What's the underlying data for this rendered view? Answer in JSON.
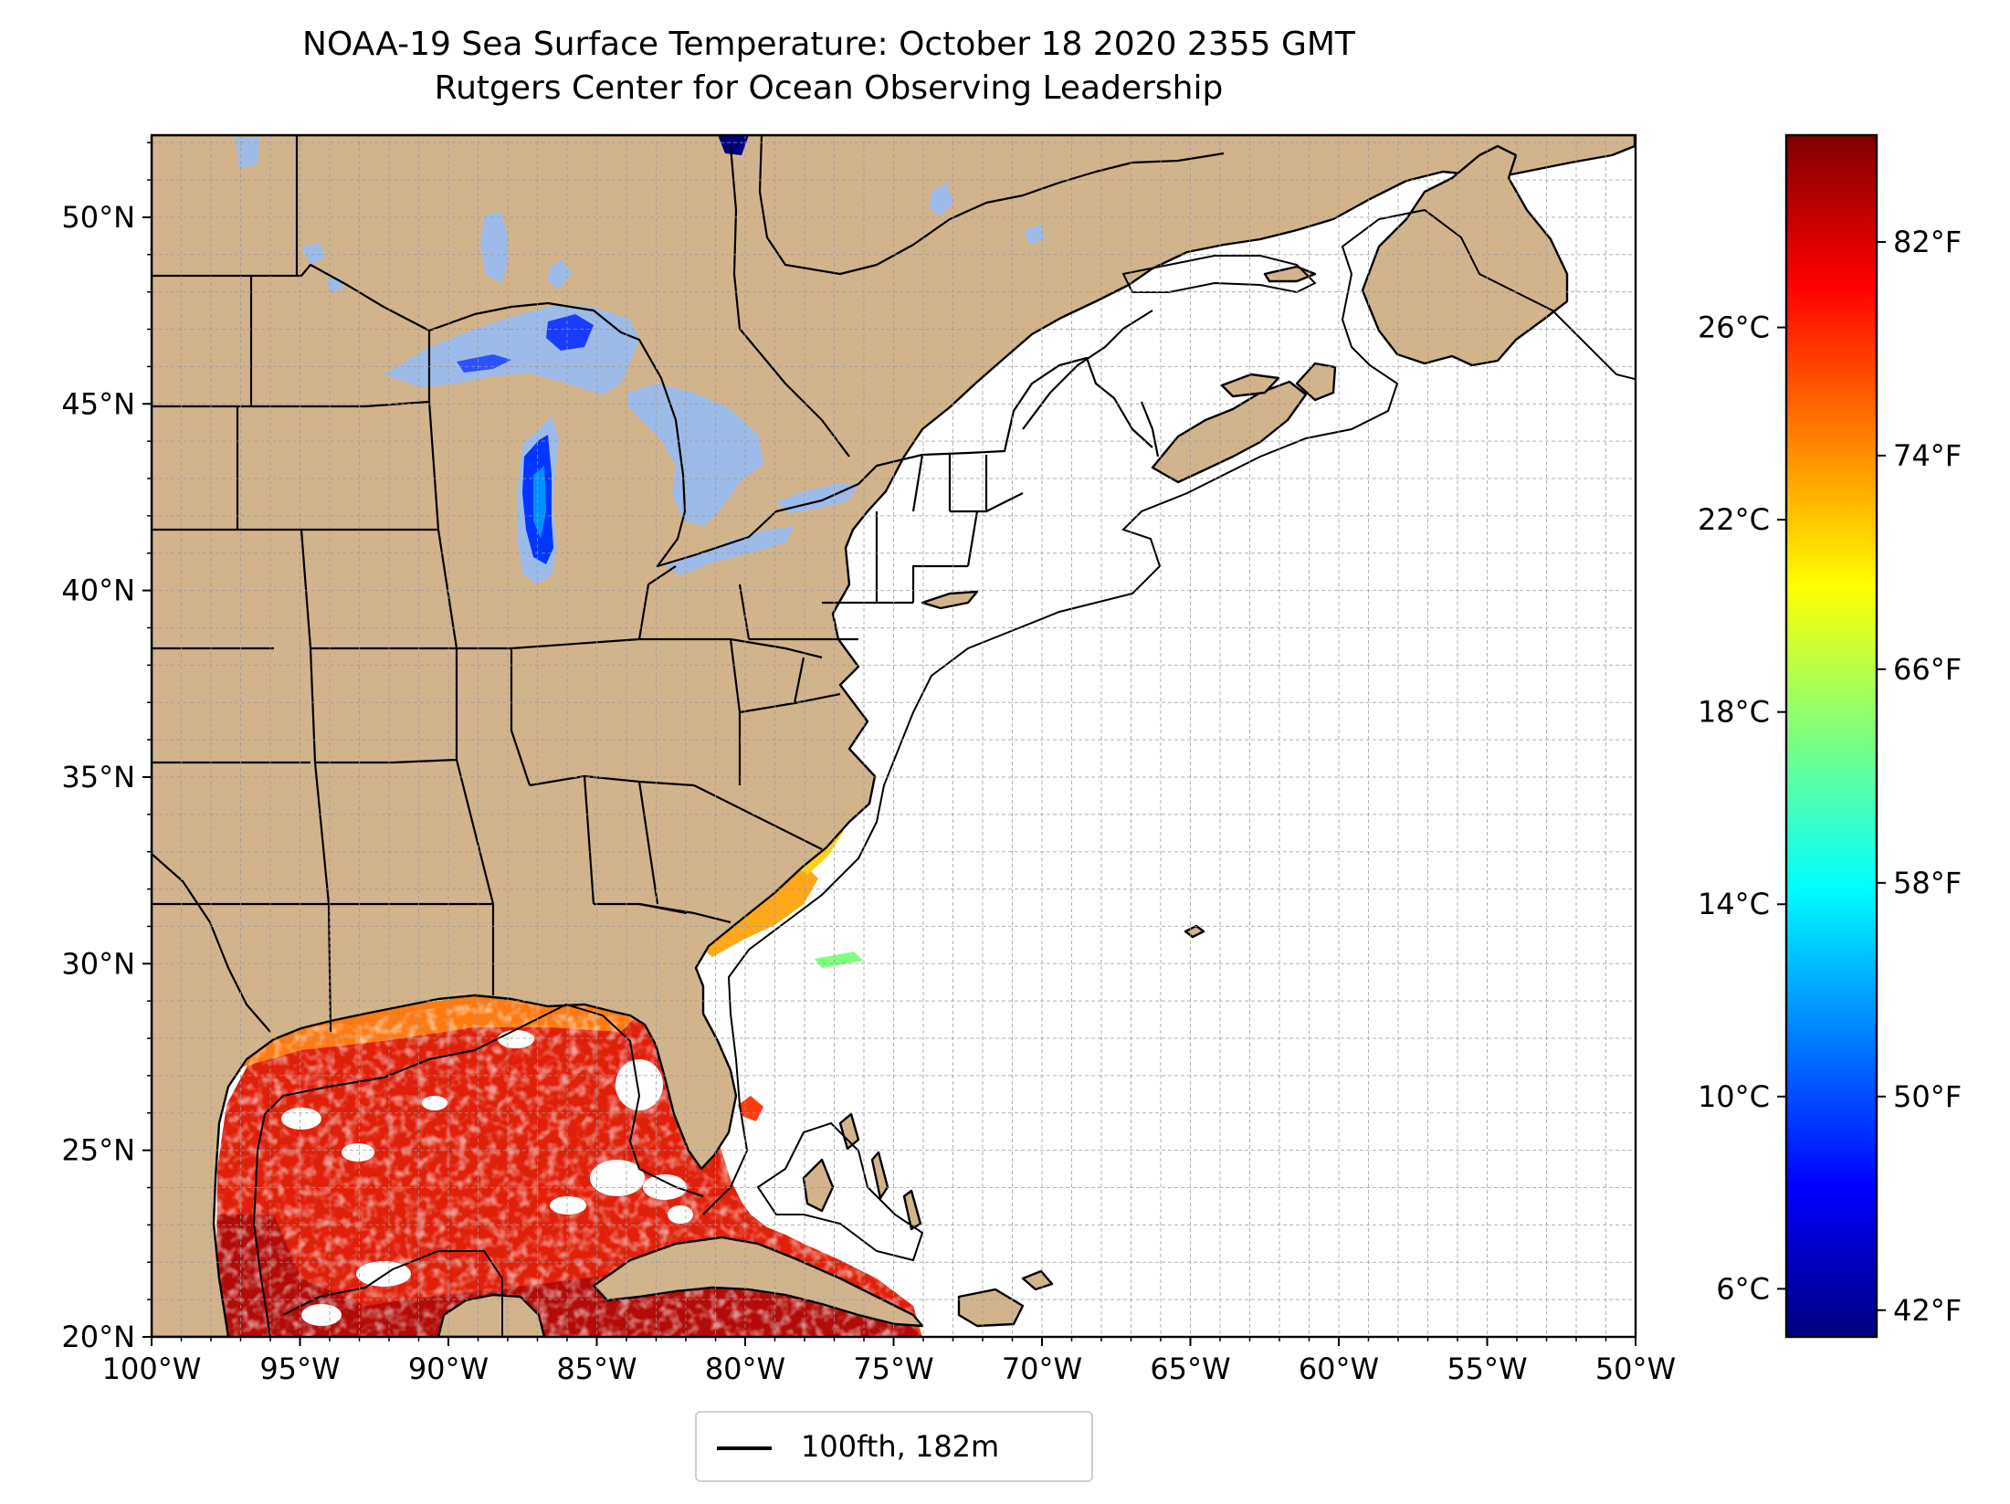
{
  "title": {
    "line1": "NOAA-19 Sea Surface Temperature: October 18 2020 2355 GMT",
    "line2": "Rutgers Center for Ocean Observing Leadership"
  },
  "map": {
    "lon_range": [
      -100,
      -50
    ],
    "lat_range": [
      20,
      52.2
    ],
    "lon_ticks": [
      -100,
      -95,
      -90,
      -85,
      -80,
      -75,
      -70,
      -65,
      -60,
      -55,
      -50
    ],
    "lon_tick_labels": [
      "100°W",
      "95°W",
      "90°W",
      "85°W",
      "80°W",
      "75°W",
      "70°W",
      "65°W",
      "60°W",
      "55°W",
      "50°W"
    ],
    "lat_ticks": [
      20,
      25,
      30,
      35,
      40,
      45,
      50
    ],
    "lat_tick_labels": [
      "20°N",
      "25°N",
      "30°N",
      "35°N",
      "40°N",
      "45°N",
      "50°N"
    ],
    "gridlines": "dashed, 1 degree",
    "land_color": "#d2b48c",
    "ocean_color": "#ffffff",
    "lake_color": "#9dbbe8",
    "border_color": "#000000"
  },
  "colorbar": {
    "colormap": "jet",
    "celsius_range": [
      5,
      30
    ],
    "celsius_ticks": [
      6,
      10,
      14,
      18,
      22,
      26
    ],
    "celsius_labels": [
      "6°C",
      "10°C",
      "14°C",
      "18°C",
      "22°C",
      "26°C"
    ],
    "fahrenheit_ticks": [
      42,
      50,
      58,
      66,
      74,
      82
    ],
    "fahrenheit_labels": [
      "42°F",
      "50°F",
      "58°F",
      "66°F",
      "74°F",
      "82°F"
    ],
    "stops": [
      "#00007f",
      "#0000ff",
      "#007fff",
      "#00ffff",
      "#7fff7f",
      "#ffff00",
      "#ff7f00",
      "#ff0000",
      "#7f0000"
    ]
  },
  "legend": {
    "label": "100fth, 182m",
    "line_color": "#000000",
    "placement": "below-center"
  }
}
